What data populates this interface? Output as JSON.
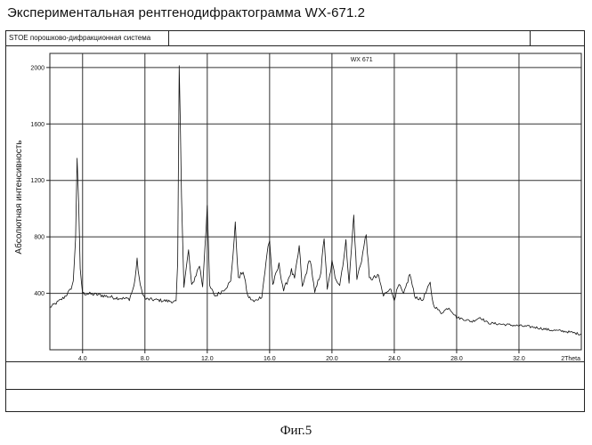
{
  "heading": "Экспериментальная рентгенодифрактограмма WX-671.2",
  "window": {
    "title": "STOE порошково-дифракционная система"
  },
  "caption": "Фиг.5",
  "chart_data": {
    "type": "line",
    "title": "",
    "series_label": "WX 671",
    "xlabel": "2Theta",
    "ylabel": "Абсолютная интенсивность",
    "xlim": [
      1.9,
      36.0
    ],
    "ylim": [
      0,
      2100
    ],
    "x_ticks": [
      4.0,
      8.0,
      12.0,
      16.0,
      20.0,
      24.0,
      28.0,
      32.0
    ],
    "x_tick_labels": [
      "4.0",
      "8.0",
      "12.0",
      "16.0",
      "20.0",
      "24.0",
      "28.0",
      "32.0"
    ],
    "y_ticks": [
      400,
      800,
      1200,
      1600,
      2000
    ],
    "y_tick_labels": [
      "400",
      "800",
      "1200",
      "1600",
      "2000"
    ],
    "grid": true,
    "series": [
      {
        "values": [
          [
            1.9,
            300
          ],
          [
            2.3,
            330
          ],
          [
            2.8,
            370
          ],
          [
            3.2,
            420
          ],
          [
            3.4,
            480
          ],
          [
            3.55,
            800
          ],
          [
            3.65,
            1370
          ],
          [
            3.75,
            1000
          ],
          [
            3.85,
            560
          ],
          [
            4.0,
            400
          ],
          [
            5.0,
            390
          ],
          [
            6.0,
            370
          ],
          [
            7.0,
            360
          ],
          [
            7.3,
            450
          ],
          [
            7.5,
            630
          ],
          [
            7.7,
            450
          ],
          [
            8.0,
            360
          ],
          [
            9.0,
            350
          ],
          [
            10.0,
            340
          ],
          [
            10.1,
            600
          ],
          [
            10.2,
            2000
          ],
          [
            10.35,
            1100
          ],
          [
            10.5,
            450
          ],
          [
            10.8,
            700
          ],
          [
            11.0,
            450
          ],
          [
            11.5,
            600
          ],
          [
            11.7,
            450
          ],
          [
            12.0,
            1020
          ],
          [
            12.15,
            450
          ],
          [
            12.5,
            380
          ],
          [
            13.0,
            420
          ],
          [
            13.5,
            480
          ],
          [
            13.8,
            880
          ],
          [
            14.0,
            500
          ],
          [
            14.3,
            560
          ],
          [
            14.6,
            380
          ],
          [
            15.0,
            340
          ],
          [
            15.5,
            380
          ],
          [
            15.9,
            730
          ],
          [
            16.0,
            780
          ],
          [
            16.2,
            460
          ],
          [
            16.6,
            600
          ],
          [
            16.9,
            420
          ],
          [
            17.4,
            560
          ],
          [
            17.6,
            500
          ],
          [
            17.9,
            730
          ],
          [
            18.1,
            440
          ],
          [
            18.6,
            650
          ],
          [
            18.9,
            400
          ],
          [
            19.3,
            560
          ],
          [
            19.5,
            800
          ],
          [
            19.7,
            420
          ],
          [
            20.0,
            620
          ],
          [
            20.2,
            520
          ],
          [
            20.5,
            460
          ],
          [
            20.9,
            760
          ],
          [
            21.1,
            480
          ],
          [
            21.4,
            950
          ],
          [
            21.6,
            500
          ],
          [
            21.9,
            640
          ],
          [
            22.2,
            820
          ],
          [
            22.4,
            500
          ],
          [
            23.0,
            520
          ],
          [
            23.3,
            380
          ],
          [
            23.7,
            440
          ],
          [
            24.0,
            360
          ],
          [
            24.3,
            460
          ],
          [
            24.6,
            390
          ],
          [
            25.0,
            540
          ],
          [
            25.3,
            380
          ],
          [
            25.8,
            350
          ],
          [
            26.3,
            470
          ],
          [
            26.5,
            320
          ],
          [
            27.0,
            260
          ],
          [
            27.5,
            300
          ],
          [
            28.0,
            230
          ],
          [
            29.0,
            200
          ],
          [
            29.5,
            230
          ],
          [
            30.0,
            190
          ],
          [
            31.0,
            180
          ],
          [
            32.0,
            170
          ],
          [
            33.0,
            160
          ],
          [
            34.0,
            140
          ],
          [
            35.0,
            130
          ],
          [
            36.0,
            110
          ]
        ]
      }
    ]
  }
}
